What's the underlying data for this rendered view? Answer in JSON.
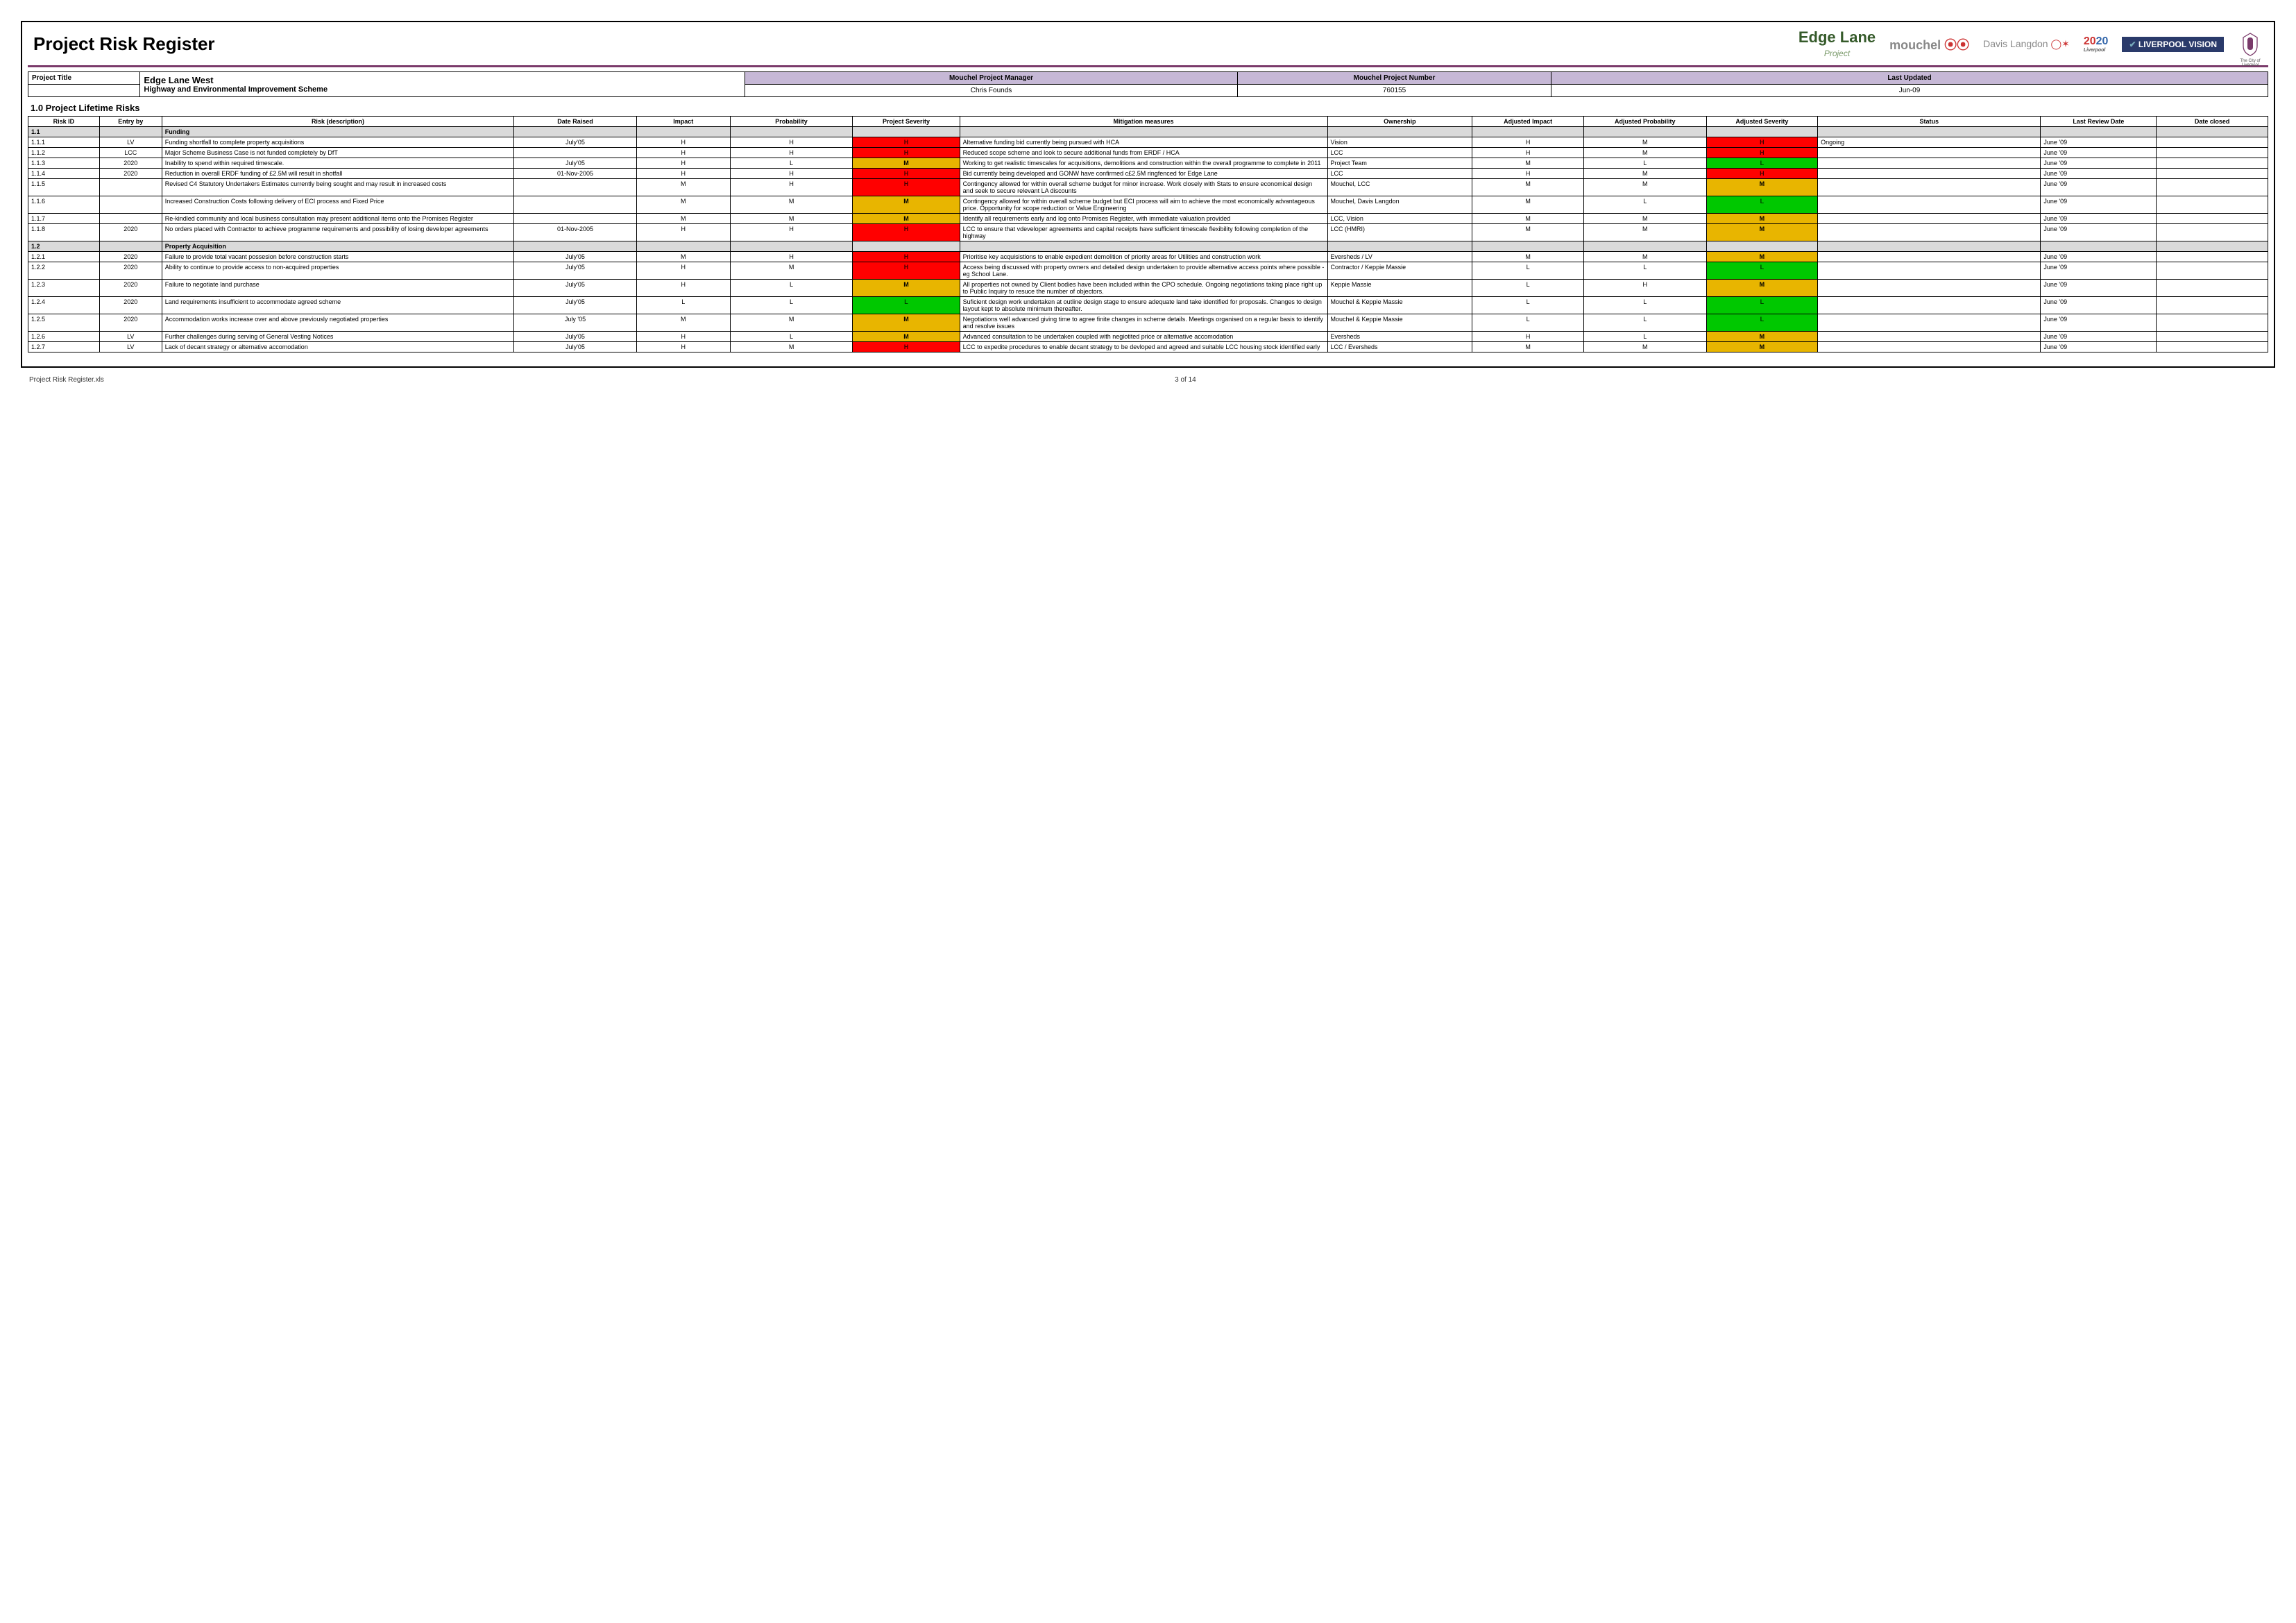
{
  "doc_title": "Project Risk Register",
  "logos": {
    "edge": "Edge Lane",
    "edge_sub": "Project",
    "mouchel": "mouchel",
    "davis": "Davis Langdon",
    "y2020": "2020",
    "y2020_sub": "Liverpool",
    "vision": "LIVERPOOL VISION",
    "liver_sub": "The City of Liverpool"
  },
  "meta": {
    "pt_lbl": "Project Title",
    "pt_val": "Edge Lane West",
    "pt_sub": "Highway and Environmental Improvement Scheme",
    "pm_lbl": "Mouchel Project Manager",
    "pm_val": "Chris Founds",
    "pn_lbl": "Mouchel Project Number",
    "pn_val": "760155",
    "lu_lbl": "Last Updated",
    "lu_val": "Jun-09"
  },
  "section": "1.0   Project Lifetime Risks",
  "columns": [
    "Risk ID",
    "Entry by",
    "Risk (description)",
    "Date Raised",
    "Impact",
    "Probability",
    "Project Severity",
    "Mitigation measures",
    "Ownership",
    "Adjusted Impact",
    "Adjusted Probability",
    "Adjusted Severity",
    "Status",
    "Last Review Date",
    "Date closed"
  ],
  "severity_colors": {
    "H": "#ff0000",
    "M": "#e8b500",
    "L": "#00c800"
  },
  "rows": [
    {
      "cat": true,
      "id": "1.1",
      "desc": "Funding"
    },
    {
      "id": "1.1.1",
      "by": "LV",
      "desc": "Funding shortfall to complete property acquisitions",
      "date": "July'05",
      "imp": "H",
      "prob": "H",
      "sev": "H",
      "mit": "Alternative funding bid currently being pursued with HCA",
      "own": "Vision",
      "aimp": "H",
      "aprob": "M",
      "asev": "H",
      "stat": "Ongoing",
      "rev": "June '09"
    },
    {
      "id": "1.1.2",
      "by": "LCC",
      "desc": "Major Scheme Business Case is not funded completely by DfT",
      "date": "",
      "imp": "H",
      "prob": "H",
      "sev": "H",
      "mit": "Reduced scope scheme and look to secure additional funds from ERDF / HCA",
      "own": "LCC",
      "aimp": "H",
      "aprob": "M",
      "asev": "H",
      "stat": "",
      "rev": "June '09"
    },
    {
      "id": "1.1.3",
      "by": "2020",
      "desc": "Inability to spend within required timescale.",
      "date": "July'05",
      "imp": "H",
      "prob": "L",
      "sev": "M",
      "mit": "Working to get realistic timescales for acquisitions, demolitions and construction within the overall programme to complete in 2011",
      "own": "Project Team",
      "aimp": "M",
      "aprob": "L",
      "asev": "L",
      "stat": "",
      "rev": "June '09"
    },
    {
      "id": "1.1.4",
      "by": "2020",
      "desc": "Reduction in overall ERDF funding of £2.5M will result in shotfall",
      "date": "01-Nov-2005",
      "imp": "H",
      "prob": "H",
      "sev": "H",
      "mit": "Bid currently being developed and GONW have confirmed c£2.5M ringfenced for Edge Lane",
      "own": "LCC",
      "aimp": "H",
      "aprob": "M",
      "asev": "H",
      "stat": "",
      "rev": "June '09"
    },
    {
      "id": "1.1.5",
      "by": "",
      "desc": "Revised C4 Statutory Undertakers Estimates currently being sought and may result in increased costs",
      "date": "",
      "imp": "M",
      "prob": "H",
      "sev": "H",
      "mit": "Contingency allowed for within overall scheme budget for minor increase.  Work closely with Stats to ensure economical design and seek to secure relevant LA discounts",
      "own": "Mouchel, LCC",
      "aimp": "M",
      "aprob": "M",
      "asev": "M",
      "stat": "",
      "rev": "June '09"
    },
    {
      "id": "1.1.6",
      "by": "",
      "desc": "Increased Construction Costs following delivery of ECI process and Fixed Price",
      "date": "",
      "imp": "M",
      "prob": "M",
      "sev": "M",
      "mit": "Contingency allowed for within overall scheme budget but ECI process will aim to achieve the most economically advantageous price. Opportunity for scope reduction or Value Engineering",
      "own": "Mouchel, Davis Langdon",
      "aimp": "M",
      "aprob": "L",
      "asev": "L",
      "stat": "",
      "rev": "June '09"
    },
    {
      "id": "1.1.7",
      "by": "",
      "desc": "Re-kindled community and local business consultation may present additional items onto the Promises Register",
      "date": "",
      "imp": "M",
      "prob": "M",
      "sev": "M",
      "mit": "Identify all requirements early and log onto Promises Register, with immediate valuation provided",
      "own": "LCC, Vision",
      "aimp": "M",
      "aprob": "M",
      "asev": "M",
      "stat": "",
      "rev": "June '09"
    },
    {
      "id": "1.1.8",
      "by": "2020",
      "desc": "No orders placed with Contractor to achieve programme requirements and possibility of losing developer agreements",
      "date": "01-Nov-2005",
      "imp": "H",
      "prob": "H",
      "sev": "H",
      "mit": "LCC to ensure that vdeveloper agreements and capital receipts have sufficient timescale flexibility following completion of the highway",
      "own": "LCC (HMRI)",
      "aimp": "M",
      "aprob": "M",
      "asev": "M",
      "stat": "",
      "rev": "June '09"
    },
    {
      "cat": true,
      "id": "1.2",
      "desc": "Property Acquisition"
    },
    {
      "id": "1.2.1",
      "by": "2020",
      "desc": "Failure to provide total vacant possesion before construction starts",
      "date": "July'05",
      "imp": "M",
      "prob": "H",
      "sev": "H",
      "mit": "Prioritise key acquisistions to enable expedient demolition of priority areas for Utilities and construction work",
      "own": "Eversheds / LV",
      "aimp": "M",
      "aprob": "M",
      "asev": "M",
      "stat": "",
      "rev": "June '09"
    },
    {
      "id": "1.2.2",
      "by": "2020",
      "desc": "Ability to continue to provide access to non-acquired properties",
      "date": "July'05",
      "imp": "H",
      "prob": "M",
      "sev": "H",
      "mit": "Access being discussed with property owners and detailed design undertaken to provide alternative access points where possible - eg School Lane.",
      "own": "Contractor / Keppie Massie",
      "aimp": "L",
      "aprob": "L",
      "asev": "L",
      "stat": "",
      "rev": "June '09"
    },
    {
      "id": "1.2.3",
      "by": "2020",
      "desc": "Failure to negotiate land purchase",
      "date": "July'05",
      "imp": "H",
      "prob": "L",
      "sev": "M",
      "mit": "All properties not owned by Client bodies have been included within the CPO schedule. Ongoing negotiations taking place right up to Public Inquiry to resuce the number of objectors.",
      "own": "Keppie Massie",
      "aimp": "L",
      "aprob": "H",
      "asev": "M",
      "stat": "",
      "rev": "June '09"
    },
    {
      "id": "1.2.4",
      "by": "2020",
      "desc": "Land requirements insufficient to accommodate agreed scheme",
      "date": "July'05",
      "imp": "L",
      "prob": "L",
      "sev": "L",
      "mit": "Suficient design work undertaken at outline design stage to ensure adequate land take identified for proposals. Changes to design layout kept to absolute minimum thereafter.",
      "own": "Mouchel & Keppie Massie",
      "aimp": "L",
      "aprob": "L",
      "asev": "L",
      "stat": "",
      "rev": "June '09"
    },
    {
      "id": "1.2.5",
      "by": "2020",
      "desc": "Accommodation works increase over and above previously negotiated properties",
      "date": "July '05",
      "imp": "M",
      "prob": "M",
      "sev": "M",
      "mit": "Negotiations well advanced giving time to agree finite changes in scheme details. Meetings organised on a regular basis to identify and resolve issues",
      "own": "Mouchel & Keppie Massie",
      "aimp": "L",
      "aprob": "L",
      "asev": "L",
      "stat": "",
      "rev": "June '09"
    },
    {
      "id": "1.2.6",
      "by": "LV",
      "desc": "Further challenges during serving of General Vesting Notices",
      "date": "July'05",
      "imp": "H",
      "prob": "L",
      "sev": "M",
      "mit": "Advanced consultation to be undertaken coupled with negiotited price or alternative accomodation",
      "own": "Eversheds",
      "aimp": "H",
      "aprob": "L",
      "asev": "M",
      "stat": "",
      "rev": "June '09"
    },
    {
      "id": "1.2.7",
      "by": "LV",
      "desc": "Lack of decant strategy or alternative accomodation",
      "date": "July'05",
      "imp": "H",
      "prob": "M",
      "sev": "H",
      "mit": "LCC to expedite procedures to enable decant strategy to be devloped and agreed and suitable LCC housing stock identified early",
      "own": "LCC / Eversheds",
      "aimp": "M",
      "aprob": "M",
      "asev": "M",
      "stat": "",
      "rev": "June '09"
    }
  ],
  "footer": {
    "left": "Project Risk Register.xls",
    "center": "3 of 14"
  }
}
